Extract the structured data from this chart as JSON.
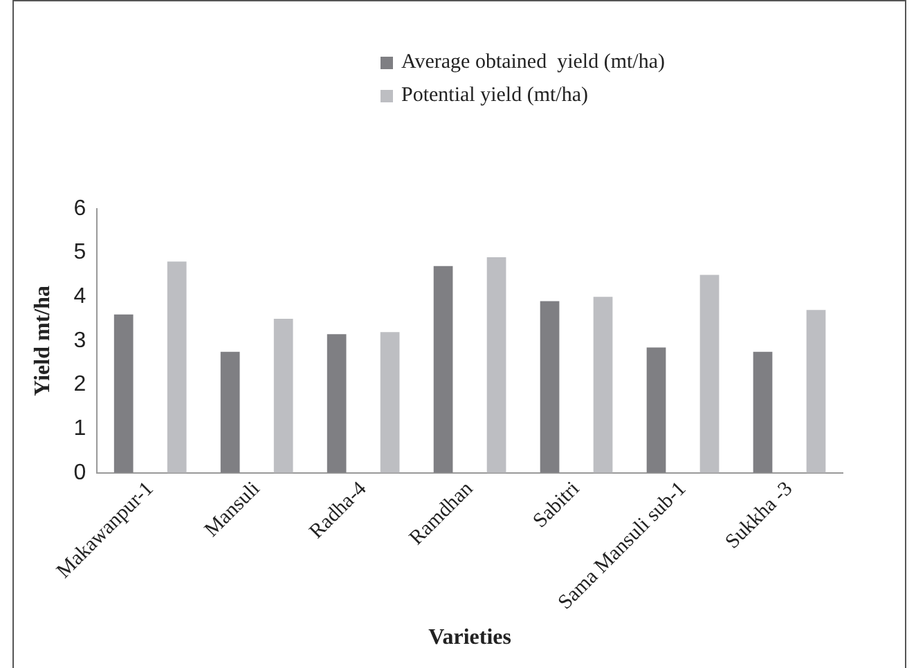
{
  "chart_data": {
    "type": "bar",
    "xlabel": "Varieties",
    "ylabel": "Yield mt/ha",
    "categories": [
      "Makawanpur-1",
      "Mansuli",
      "Radha-4",
      "Ramdhan",
      "Sabitri",
      "Sama Mansuli sub-1",
      "Sukkha -3"
    ],
    "series": [
      {
        "name": "Average obtained  yield (mt/ha)",
        "color": "#7f7f83",
        "values": [
          3.6,
          2.75,
          3.15,
          4.7,
          3.9,
          2.85,
          2.75
        ]
      },
      {
        "name": "Potential yield (mt/ha)",
        "color": "#bdbec2",
        "values": [
          4.8,
          3.5,
          3.2,
          4.9,
          4.0,
          4.5,
          3.7
        ]
      }
    ],
    "ylim": [
      0,
      6
    ],
    "yticks": [
      0,
      1,
      2,
      3,
      4,
      5,
      6
    ],
    "grid": false,
    "legend": "top right"
  }
}
